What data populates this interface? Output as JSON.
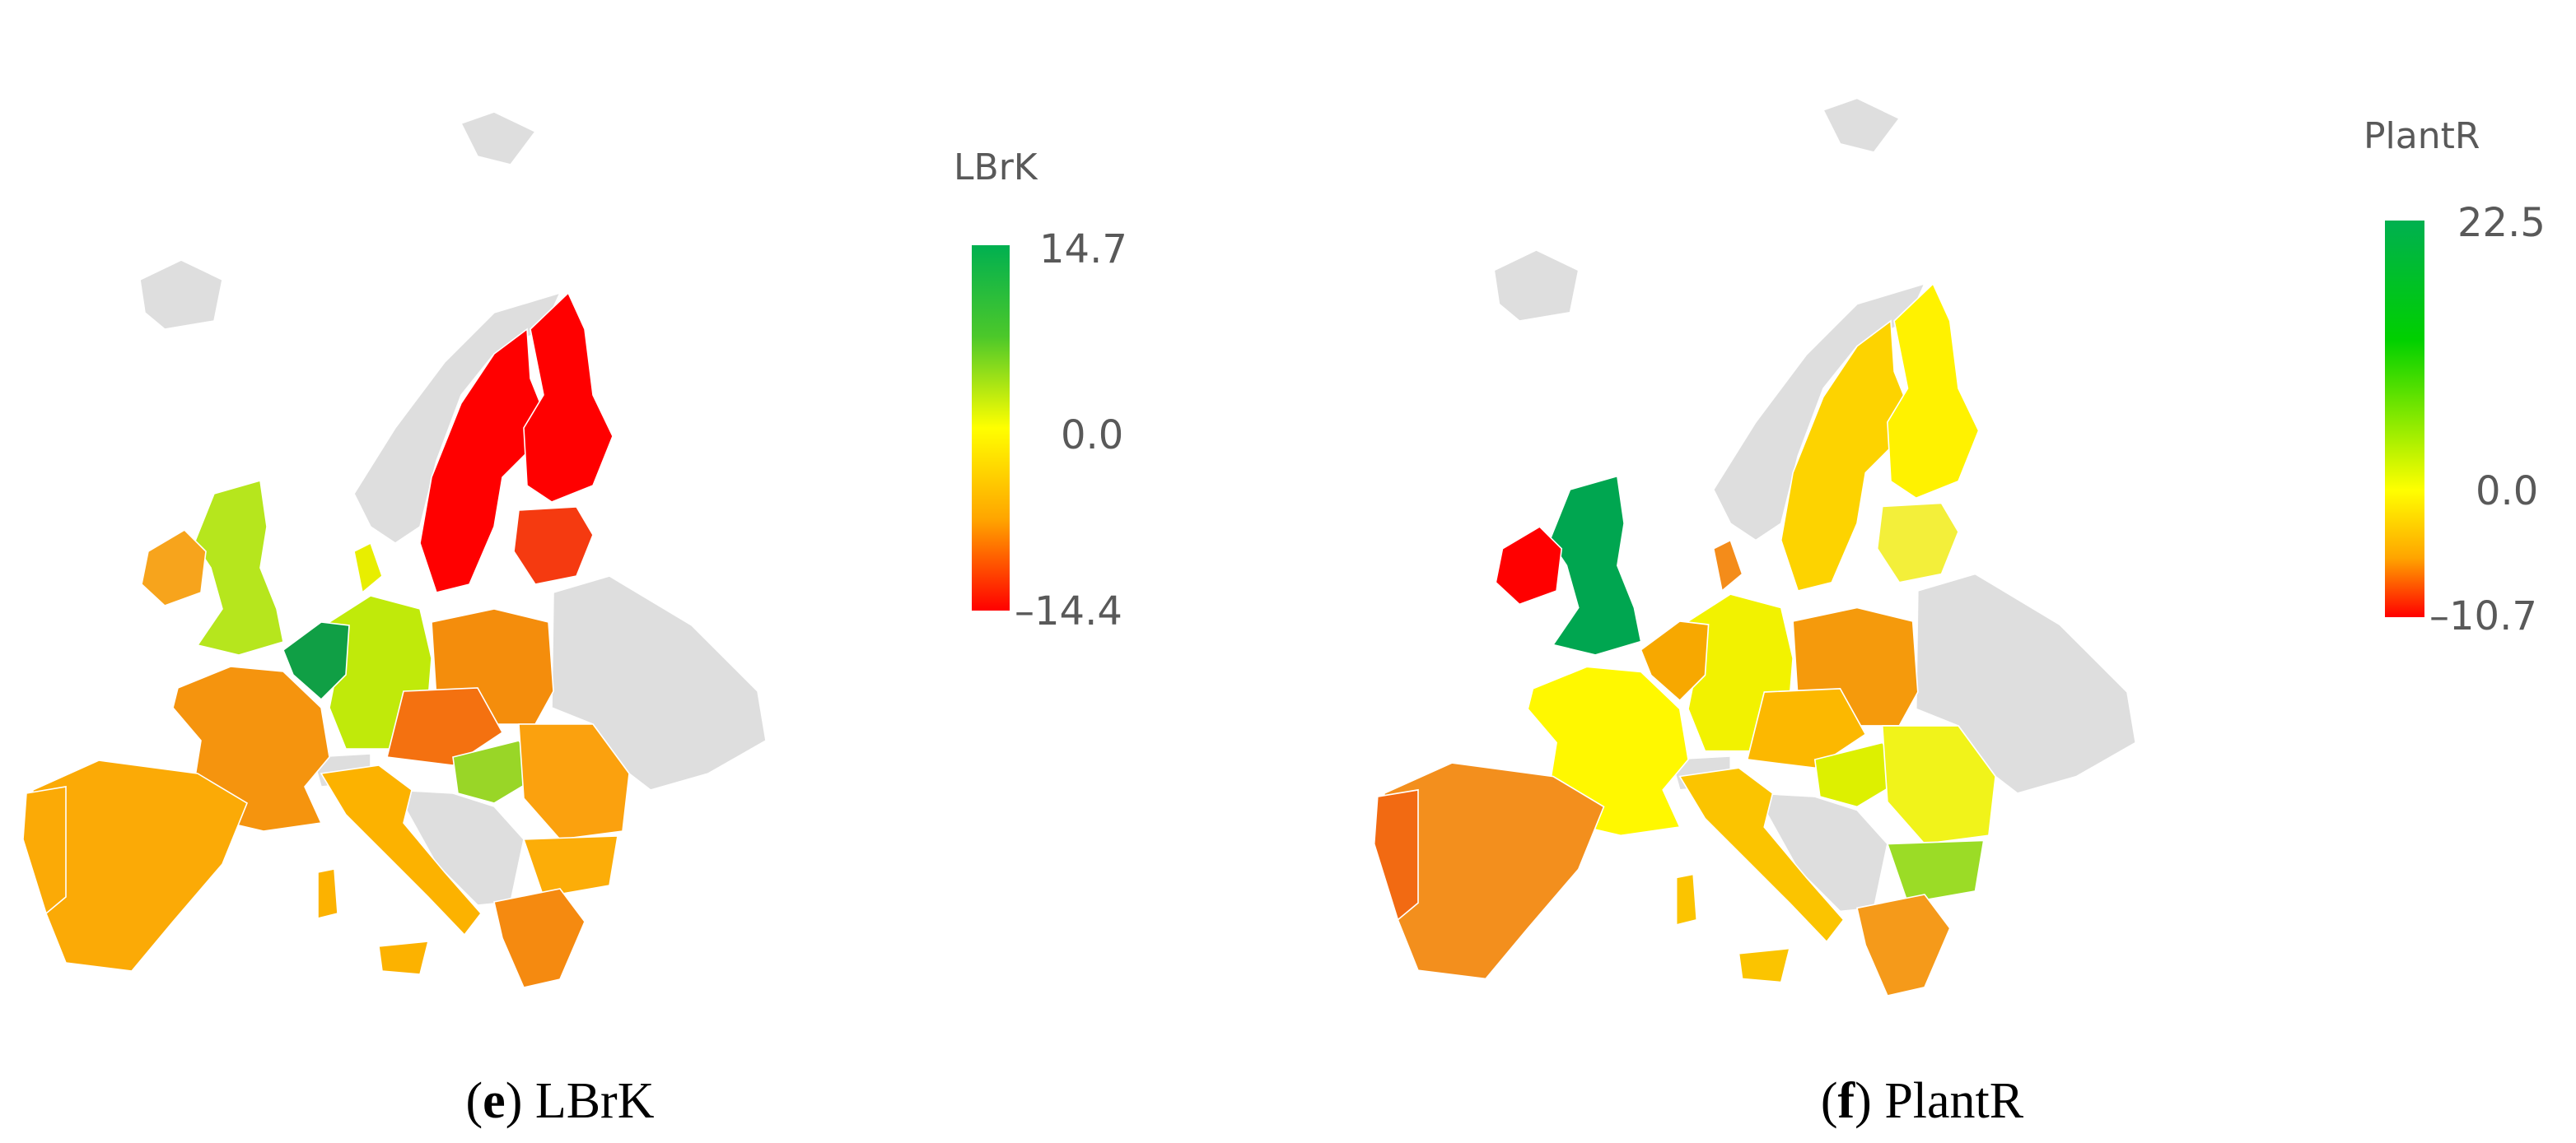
{
  "maps": [
    {
      "legend": {
        "title": "LBrK",
        "labels": [
          "14.7",
          "0.0",
          "–14.4"
        ]
      },
      "caption": {
        "open": "(",
        "letter": "e",
        "rest": ") LBrK"
      }
    },
    {
      "legend": {
        "title": "PlantR",
        "labels": [
          "22.5",
          "0.0",
          "–10.7"
        ]
      },
      "caption": {
        "open": "(",
        "letter": "f",
        "rest": ") PlantR"
      }
    }
  ]
}
